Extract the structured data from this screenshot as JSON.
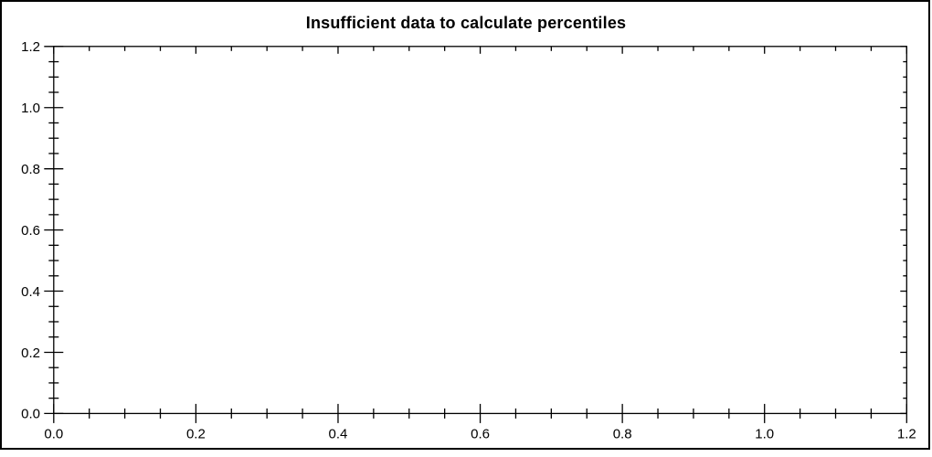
{
  "page": {
    "background": "#ffffff",
    "border_color": "#000000"
  },
  "chart_data": {
    "type": "line",
    "title": "Insufficient data to calculate percentiles",
    "series": [],
    "xlim": [
      0.0,
      1.2
    ],
    "ylim": [
      0.0,
      1.2
    ],
    "x_major_step": 0.2,
    "y_major_step": 0.2,
    "x_minor_step": 0.05,
    "y_minor_step": 0.05,
    "x_tick_labels": [
      "0.0",
      "0.2",
      "0.4",
      "0.6",
      "0.8",
      "1.0",
      "1.2"
    ],
    "y_tick_labels": [
      "0.0",
      "0.2",
      "0.4",
      "0.6",
      "0.8",
      "1.0",
      "1.2"
    ],
    "grid": false,
    "frame": true,
    "legend": null,
    "tick_style": "major-and-minor ticks cross left/bottom axes, point inward on top/right frame",
    "axis_color": "#000000",
    "text_color": "#000000",
    "plot_background": "#ffffff"
  }
}
